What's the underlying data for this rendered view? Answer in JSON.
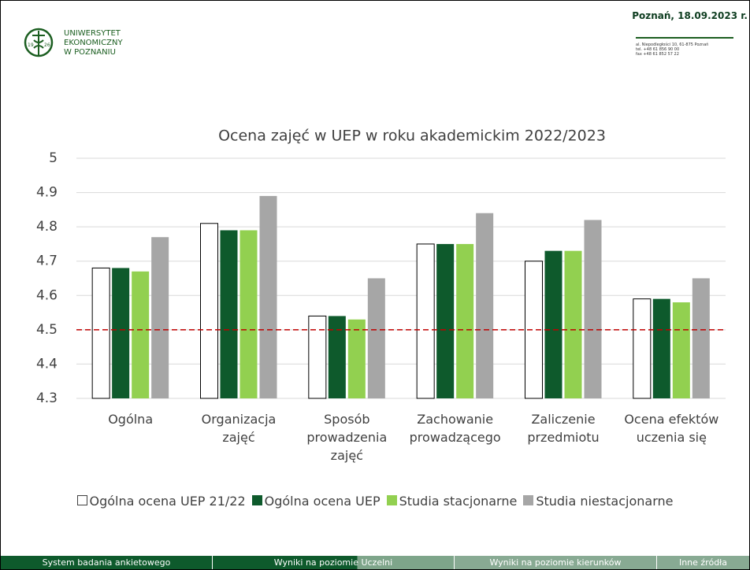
{
  "header": {
    "logo_lines": [
      "UNIWERSYTET",
      "EKONOMICZNY",
      "W POZNANIU"
    ],
    "logo_years": [
      "19",
      "26"
    ],
    "date": "Poznań, 18.09.2023 r.",
    "address": [
      "al. Niepodległości 10, 61-875 Poznań",
      "tel. +48 61 856 90 00",
      "fax +48 61 852 57 22"
    ]
  },
  "chart_data": {
    "type": "bar",
    "title": "Ocena zajęć w UEP w roku akademickim 2022/2023",
    "categories": [
      "Ogólna",
      "Organizacja zajęć",
      "Sposób prowadzenia zajęć",
      "Zachowanie prowadzącego",
      "Zaliczenie przedmiotu",
      "Ocena efektów uczenia się"
    ],
    "series": [
      {
        "name": "Ogólna ocena UEP 21/22",
        "color": "#ffffff",
        "values": [
          4.68,
          4.81,
          4.54,
          4.75,
          4.7,
          4.59
        ]
      },
      {
        "name": "Ogólna ocena UEP",
        "color": "#0e5a2c",
        "values": [
          4.68,
          4.79,
          4.54,
          4.75,
          4.73,
          4.59
        ]
      },
      {
        "name": "Studia stacjonarne",
        "color": "#92d050",
        "values": [
          4.67,
          4.79,
          4.53,
          4.75,
          4.73,
          4.58
        ]
      },
      {
        "name": "Studia niestacjonarne",
        "color": "#a6a6a6",
        "values": [
          4.77,
          4.89,
          4.65,
          4.84,
          4.82,
          4.65
        ]
      }
    ],
    "ylim": [
      4.3,
      5
    ],
    "yticks": [
      4.3,
      4.4,
      4.5,
      4.6,
      4.7,
      4.8,
      4.9,
      5
    ],
    "grid": true,
    "reference_line": {
      "value": 4.5,
      "color": "#c00000"
    }
  },
  "footer": {
    "tabs": [
      "System badania ankietowego",
      "Wyniki na poziomie Uczelni",
      "Wyniki na poziomie kierunków",
      "Inne źródła"
    ]
  }
}
